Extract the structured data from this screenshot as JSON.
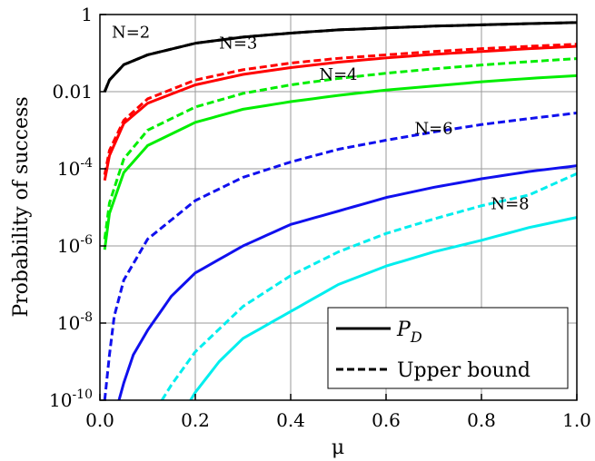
{
  "chart_data": {
    "type": "line",
    "xlabel": "μ",
    "ylabel": "Probability of success",
    "x_scale": "linear",
    "y_scale": "log",
    "xlim": [
      0.0,
      1.0
    ],
    "ylim": [
      1e-10,
      1
    ],
    "grid": true,
    "x_ticks": [
      "0.0",
      "0.2",
      "0.4",
      "0.6",
      "0.8",
      "1.0"
    ],
    "y_ticks": [
      {
        "mantissa": "1",
        "exp": ""
      },
      {
        "mantissa": "0.01",
        "exp": ""
      },
      {
        "mantissa": "10",
        "exp": "-4"
      },
      {
        "mantissa": "10",
        "exp": "-6"
      },
      {
        "mantissa": "10",
        "exp": "-8"
      },
      {
        "mantissa": "10",
        "exp": "-10"
      }
    ],
    "legend": {
      "position": "bottom-right",
      "entries": [
        {
          "label": "P",
          "subscript": "D",
          "style": "solid"
        },
        {
          "label": "Upper bound",
          "style": "dashed"
        }
      ]
    },
    "series": [
      {
        "group": "N=2",
        "style": "solid",
        "color": "#000000",
        "x": [
          0.01,
          0.02,
          0.05,
          0.1,
          0.2,
          0.3,
          0.4,
          0.5,
          0.6,
          0.7,
          0.8,
          0.9,
          1.0
        ],
        "y": [
          0.01,
          0.02,
          0.05,
          0.09,
          0.18,
          0.26,
          0.33,
          0.4,
          0.45,
          0.5,
          0.54,
          0.58,
          0.62
        ]
      },
      {
        "group": "N=2",
        "style": "dashed",
        "color": "#000000",
        "x": [
          0.01,
          0.02,
          0.05,
          0.1,
          0.2,
          0.3,
          0.4,
          0.5,
          0.6,
          0.7,
          0.8,
          0.9,
          1.0
        ],
        "y": [
          0.01,
          0.02,
          0.05,
          0.09,
          0.18,
          0.26,
          0.33,
          0.4,
          0.45,
          0.5,
          0.54,
          0.58,
          0.62
        ]
      },
      {
        "group": "N=3",
        "style": "solid",
        "color": "#ff0000",
        "x": [
          0.01,
          0.02,
          0.05,
          0.1,
          0.2,
          0.3,
          0.4,
          0.5,
          0.6,
          0.7,
          0.8,
          0.9,
          1.0
        ],
        "y": [
          5e-05,
          0.00022,
          0.0015,
          0.005,
          0.015,
          0.028,
          0.042,
          0.058,
          0.075,
          0.093,
          0.11,
          0.13,
          0.15
        ]
      },
      {
        "group": "N=3",
        "style": "dashed",
        "color": "#ff0000",
        "x": [
          0.01,
          0.02,
          0.05,
          0.1,
          0.2,
          0.3,
          0.4,
          0.5,
          0.6,
          0.7,
          0.8,
          0.9,
          1.0
        ],
        "y": [
          7e-05,
          0.0003,
          0.0018,
          0.0065,
          0.02,
          0.037,
          0.055,
          0.073,
          0.09,
          0.11,
          0.13,
          0.15,
          0.17
        ]
      },
      {
        "group": "N=4",
        "style": "solid",
        "color": "#00ee00",
        "x": [
          0.01,
          0.02,
          0.05,
          0.1,
          0.2,
          0.3,
          0.4,
          0.5,
          0.6,
          0.7,
          0.8,
          0.9,
          1.0
        ],
        "y": [
          8e-07,
          7e-06,
          8e-05,
          0.0004,
          0.0016,
          0.0035,
          0.0055,
          0.008,
          0.011,
          0.014,
          0.018,
          0.022,
          0.026
        ]
      },
      {
        "group": "N=4",
        "style": "dashed",
        "color": "#00ee00",
        "x": [
          0.01,
          0.02,
          0.05,
          0.1,
          0.2,
          0.3,
          0.4,
          0.5,
          0.6,
          0.7,
          0.8,
          0.9,
          1.0
        ],
        "y": [
          1.5e-06,
          1.3e-05,
          0.00018,
          0.001,
          0.004,
          0.009,
          0.015,
          0.022,
          0.03,
          0.039,
          0.049,
          0.06,
          0.072
        ]
      },
      {
        "group": "N=6",
        "style": "solid",
        "color": "#1010ee",
        "x": [
          0.04,
          0.05,
          0.07,
          0.1,
          0.15,
          0.2,
          0.3,
          0.4,
          0.5,
          0.6,
          0.7,
          0.8,
          0.9,
          1.0
        ],
        "y": [
          1e-10,
          2.8e-10,
          1.5e-09,
          6.5e-09,
          5e-08,
          2e-07,
          1e-06,
          3.6e-06,
          8e-06,
          1.8e-05,
          3.3e-05,
          5.5e-05,
          8.5e-05,
          0.00012
        ]
      },
      {
        "group": "N=6",
        "style": "dashed",
        "color": "#1010ee",
        "x": [
          0.01,
          0.02,
          0.03,
          0.05,
          0.1,
          0.2,
          0.3,
          0.4,
          0.5,
          0.6,
          0.7,
          0.8,
          0.9,
          1.0
        ],
        "y": [
          1e-10,
          1.5e-09,
          1.5e-08,
          1.3e-07,
          1.5e-06,
          1.5e-05,
          6e-05,
          0.00015,
          0.00032,
          0.00055,
          0.0009,
          0.0014,
          0.002,
          0.0028
        ]
      },
      {
        "group": "N=8",
        "style": "solid",
        "color": "#00eeee",
        "x": [
          0.19,
          0.2,
          0.25,
          0.3,
          0.4,
          0.5,
          0.6,
          0.7,
          0.8,
          0.9,
          1.0
        ],
        "y": [
          1e-10,
          1.6e-10,
          1e-09,
          4e-09,
          2e-08,
          1e-07,
          3e-07,
          7e-07,
          1.4e-06,
          3e-06,
          5.5e-06
        ]
      },
      {
        "group": "N=8",
        "style": "dashed",
        "color": "#00eeee",
        "x": [
          0.13,
          0.15,
          0.2,
          0.3,
          0.4,
          0.5,
          0.6,
          0.7,
          0.8,
          0.9,
          1.0
        ],
        "y": [
          1e-10,
          2.5e-10,
          1.8e-09,
          2.7e-08,
          1.7e-07,
          7e-07,
          2.1e-06,
          5e-06,
          1.1e-05,
          2.1e-05,
          7.5e-05
        ]
      }
    ],
    "curve_labels": [
      {
        "text": "N=2",
        "at_x": 0.065,
        "at_y": 0.35
      },
      {
        "text": "N=3",
        "at_x": 0.29,
        "at_y": 0.18
      },
      {
        "text": "N=4",
        "at_x": 0.5,
        "at_y": 0.028
      },
      {
        "text": "N=6",
        "at_x": 0.7,
        "at_y": 0.0011
      },
      {
        "text": "N=8",
        "at_x": 0.86,
        "at_y": 1.25e-05
      }
    ]
  }
}
